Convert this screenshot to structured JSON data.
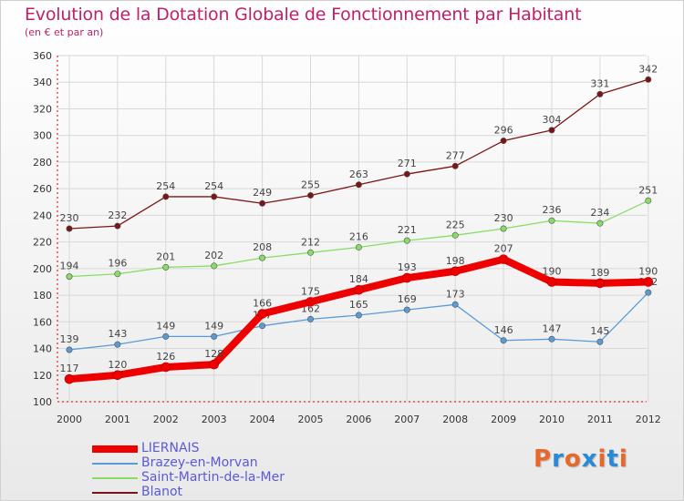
{
  "title": "Evolution de la Dotation Globale de Fonctionnement par Habitant",
  "subtitle": "(en € et par an)",
  "logo_text": "Proxiti",
  "colors": {
    "title": "#c0206a",
    "axis": "#d00000",
    "grid": "#d8d8d8",
    "legend_text": "#5a5ad6",
    "logo_letters": [
      "#e8682a",
      "#2a8ad6",
      "#e8682a",
      "#2a8ad6",
      "#e8682a",
      "#2a8ad6",
      "#e8682a"
    ]
  },
  "chart_data": {
    "type": "line",
    "x": [
      2000,
      2001,
      2002,
      2003,
      2004,
      2005,
      2006,
      2007,
      2008,
      2009,
      2010,
      2011,
      2012
    ],
    "ylim": [
      100,
      360
    ],
    "yticks": [
      100,
      120,
      140,
      160,
      180,
      200,
      220,
      240,
      260,
      280,
      300,
      320,
      340,
      360
    ],
    "grid": true,
    "legend_position": "bottom-left",
    "series": [
      {
        "name": "LIERNAIS",
        "color": "#ee0000",
        "values": [
          117,
          120,
          126,
          128,
          166,
          175,
          184,
          193,
          198,
          207,
          190,
          189,
          190
        ],
        "labels": [
          "117",
          "120",
          "126",
          "128",
          "166",
          "175",
          "184",
          "193",
          "198",
          "207",
          "190",
          "189",
          "190"
        ],
        "bold": true
      },
      {
        "name": "Brazey-en-Morvan",
        "color": "#5b9bd5",
        "values": [
          139,
          143,
          149,
          149,
          157,
          162,
          165,
          169,
          173,
          146,
          147,
          145,
          182
        ],
        "labels": [
          "139",
          "143",
          "149",
          "149",
          "157",
          "162",
          "165",
          "169",
          "173",
          "146",
          "147",
          "145",
          "182"
        ],
        "bold": false
      },
      {
        "name": "Saint-Martin-de-la-Mer",
        "color": "#88dd66",
        "values": [
          194,
          196,
          201,
          202,
          208,
          212,
          216,
          221,
          225,
          230,
          236,
          234,
          251
        ],
        "labels": [
          "194",
          "196",
          "201",
          "202",
          "208",
          "212",
          "216",
          "221",
          "225",
          "230",
          "236",
          "234",
          "251"
        ],
        "bold": false
      },
      {
        "name": "Blanot",
        "color": "#7a1515",
        "values": [
          230,
          232,
          254,
          254,
          249,
          255,
          263,
          271,
          277,
          296,
          304,
          331,
          342
        ],
        "labels": [
          "230",
          "232",
          "254",
          "254",
          "249",
          "255",
          "263",
          "271",
          "277",
          "296",
          "304",
          "331",
          "342"
        ],
        "bold": false
      }
    ]
  }
}
